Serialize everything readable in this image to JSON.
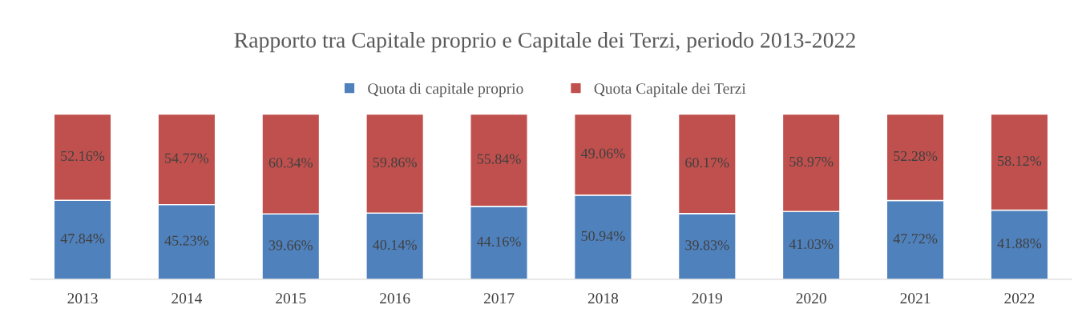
{
  "chart_data": {
    "type": "bar",
    "title": "Rapporto tra Capitale proprio e Capitale dei Terzi, periodo 2013-2022",
    "categories": [
      "2013",
      "2014",
      "2015",
      "2016",
      "2017",
      "2018",
      "2019",
      "2020",
      "2021",
      "2022"
    ],
    "stacked": true,
    "legend": "top",
    "grid": false,
    "tick_labels": "x",
    "series": [
      {
        "name": "Quota di capitale proprio",
        "color": "#4f81bd",
        "values": [
          47.84,
          45.23,
          39.66,
          40.14,
          44.16,
          50.94,
          39.83,
          41.03,
          47.72,
          41.88
        ],
        "value_labels": [
          "47.84%",
          "45.23%",
          "39.66%",
          "40.14%",
          "44.16%",
          "50.94%",
          "39.83%",
          "41.03%",
          "47.72%",
          "41.88%"
        ]
      },
      {
        "name": "Quota Capitale dei Terzi",
        "color": "#c0504d",
        "values": [
          52.16,
          54.77,
          60.34,
          59.86,
          55.84,
          49.06,
          60.17,
          58.97,
          52.28,
          58.12
        ],
        "value_labels": [
          "52.16%",
          "54.77%",
          "60.34%",
          "59.86%",
          "55.84%",
          "49.06%",
          "60.17%",
          "58.97%",
          "52.28%",
          "58.12%"
        ]
      }
    ]
  }
}
